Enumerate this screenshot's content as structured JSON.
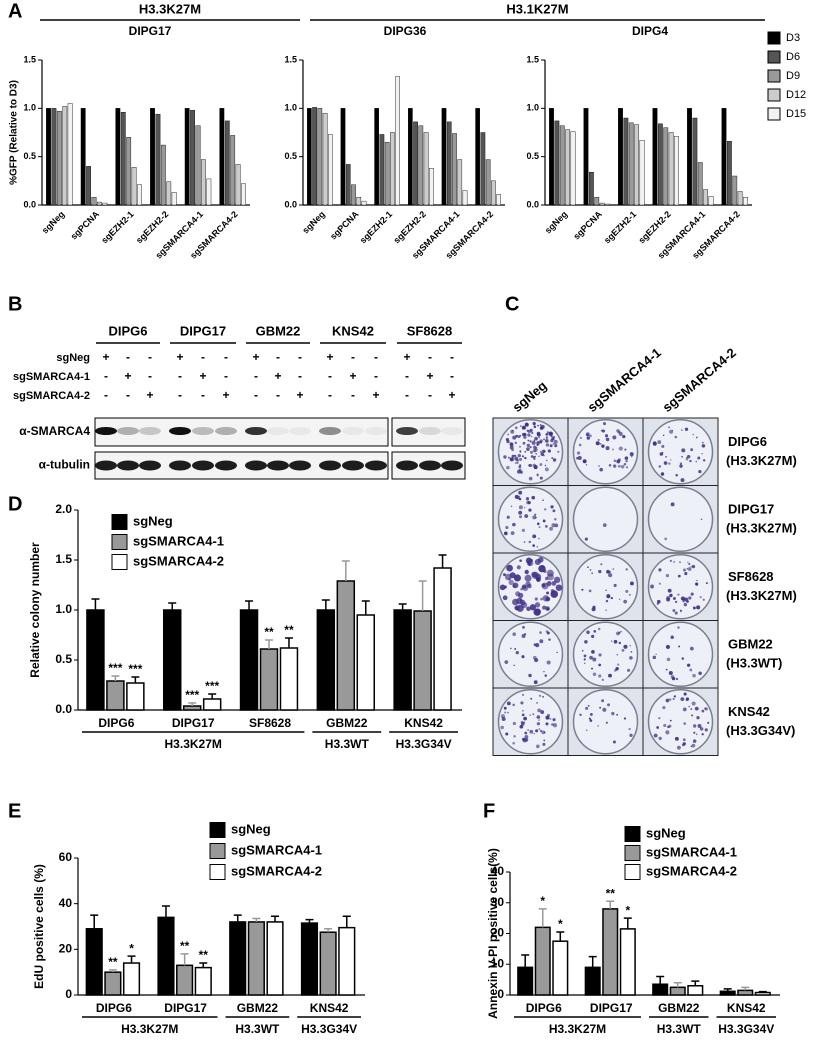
{
  "chart_data": [
    {
      "type": "bar",
      "title": "DIPG17",
      "ylabel": "%GFP (Relative to D3)",
      "legend": false,
      "categories": [
        "sgNeg",
        "sgPCNA",
        "sgEZH2-1",
        "sgEZH2-2",
        "sgSMARCA4-1",
        "sgSMARCA4-2"
      ],
      "ylim": [
        0,
        1.5
      ],
      "yticks": [
        {
          "value": 0,
          "label": "0.0"
        },
        0.5,
        {
          "value": 1,
          "label": "1.0"
        },
        1.5
      ],
      "series": [
        {
          "color": "#000000",
          "values": [
            1,
            1,
            1,
            1,
            1,
            1
          ]
        },
        {
          "color": "#555555",
          "values": [
            1.0,
            0.4,
            0.96,
            0.94,
            0.98,
            0.87
          ]
        },
        {
          "color": "#999999",
          "values": [
            0.97,
            0.08,
            0.7,
            0.62,
            0.82,
            0.72
          ]
        },
        {
          "color": "#cccccc",
          "values": [
            1.02,
            0.03,
            0.39,
            0.24,
            0.47,
            0.42
          ]
        },
        {
          "color": "#f2f2f2",
          "values": [
            1.05,
            0.02,
            0.21,
            0.13,
            0.27,
            0.22
          ]
        }
      ]
    },
    {
      "type": "bar",
      "title": "DIPG36",
      "legend": false,
      "categories": [
        "sgNeg",
        "sgPCNA",
        "sgEZH2-1",
        "sgEZH2-2",
        "sgSMARCA4-1",
        "sgSMARCA4-2"
      ],
      "ylim": [
        0,
        1.5
      ],
      "yticks": [
        {
          "value": 0,
          "label": "0.0"
        },
        0.5,
        {
          "value": 1,
          "label": "1.0"
        },
        1.5
      ],
      "series": [
        {
          "color": "#000000",
          "values": [
            1,
            1,
            1,
            1,
            1,
            1
          ]
        },
        {
          "color": "#555555",
          "values": [
            1.01,
            0.42,
            0.73,
            0.86,
            0.86,
            0.75
          ]
        },
        {
          "color": "#999999",
          "values": [
            1.0,
            0.21,
            0.65,
            0.82,
            0.74,
            0.47
          ]
        },
        {
          "color": "#cccccc",
          "values": [
            0.95,
            0.08,
            0.75,
            0.75,
            0.47,
            0.25
          ]
        },
        {
          "color": "#f2f2f2",
          "values": [
            0.73,
            0.04,
            1.33,
            0.38,
            0.15,
            0.11
          ]
        }
      ]
    },
    {
      "type": "bar",
      "title": "DIPG4",
      "legend": true,
      "categories": [
        "sgNeg",
        "sgPCNA",
        "sgEZH2-1",
        "sgEZH2-2",
        "sgSMARCA4-1",
        "sgSMARCA4-2"
      ],
      "ylim": [
        0,
        1.5
      ],
      "yticks": [
        {
          "value": 0,
          "label": "0.0"
        },
        0.5,
        {
          "value": 1,
          "label": "1.0"
        },
        1.5
      ],
      "series": [
        {
          "name": "D3",
          "color": "#000000",
          "values": [
            1,
            1,
            1,
            1,
            1,
            1
          ]
        },
        {
          "name": "D6",
          "color": "#555555",
          "values": [
            0.87,
            0.34,
            0.9,
            0.84,
            0.9,
            0.66
          ]
        },
        {
          "name": "D9",
          "color": "#999999",
          "values": [
            0.82,
            0.08,
            0.85,
            0.8,
            0.44,
            0.3
          ]
        },
        {
          "name": "D12",
          "color": "#cccccc",
          "values": [
            0.78,
            0.02,
            0.83,
            0.75,
            0.16,
            0.14
          ]
        },
        {
          "name": "D15",
          "color": "#f2f2f2",
          "values": [
            0.76,
            0.01,
            0.67,
            0.71,
            0.09,
            0.08
          ]
        }
      ]
    },
    {
      "type": "bar",
      "panel_label": "D",
      "ylabel": "Relative colony number",
      "legend": true,
      "categories": [
        "DIPG6",
        "DIPG17",
        "SF8628",
        "GBM22",
        "KNS42"
      ],
      "groups": [
        {
          "label": "H3.3K27M",
          "span": 3
        },
        {
          "label": "H3.3WT",
          "span": 1
        },
        {
          "label": "H3.3G34V",
          "span": 1
        }
      ],
      "ylim": [
        0,
        2
      ],
      "yticks": [
        {
          "value": 0,
          "label": "0.0"
        },
        0.5,
        {
          "value": 1,
          "label": "1.0"
        },
        1.5,
        {
          "value": 2,
          "label": "2.0"
        }
      ],
      "series": [
        {
          "name": "sgNeg",
          "color": "#000000",
          "values": [
            1,
            1,
            1,
            1,
            1
          ],
          "errors": [
            0.11,
            0.07,
            0.09,
            0.1,
            0.06
          ],
          "stars": [
            null,
            null,
            null,
            null,
            null
          ]
        },
        {
          "name": "sgSMARCA4-1",
          "color": "#999999",
          "values": [
            0.29,
            0.04,
            0.61,
            1.29,
            0.99
          ],
          "errors": [
            0.05,
            0.03,
            0.09,
            0.2,
            0.3
          ],
          "stars": [
            "***",
            "***",
            "**",
            null,
            null
          ]
        },
        {
          "name": "sgSMARCA4-2",
          "color": "#ffffff",
          "values": [
            0.27,
            0.11,
            0.62,
            0.95,
            1.42
          ],
          "errors": [
            0.06,
            0.05,
            0.1,
            0.14,
            0.13
          ],
          "stars": [
            "***",
            "***",
            "**",
            null,
            null
          ]
        }
      ]
    },
    {
      "type": "bar",
      "panel_label": "E",
      "ylabel": "EdU positive cells (%)",
      "legend": true,
      "categories": [
        "DIPG6",
        "DIPG17",
        "GBM22",
        "KNS42"
      ],
      "groups": [
        {
          "label": "H3.3K27M",
          "span": 2
        },
        {
          "label": "H3.3WT",
          "span": 1
        },
        {
          "label": "H3.3G34V",
          "span": 1
        }
      ],
      "ylim": [
        0,
        60
      ],
      "yticks": [
        0,
        20,
        40,
        60
      ],
      "series": [
        {
          "name": "sgNeg",
          "color": "#000000",
          "values": [
            29,
            34,
            32,
            31.5
          ],
          "errors": [
            6,
            5,
            3,
            1.5
          ],
          "stars": [
            null,
            null,
            null,
            null
          ]
        },
        {
          "name": "sgSMARCA4-1",
          "color": "#999999",
          "values": [
            10,
            13,
            32,
            27.5
          ],
          "errors": [
            1,
            5,
            1.5,
            1.5
          ],
          "stars": [
            "**",
            "**",
            null,
            null
          ]
        },
        {
          "name": "sgSMARCA4-2",
          "color": "#ffffff",
          "values": [
            14,
            12,
            32,
            29.5
          ],
          "errors": [
            3,
            2,
            2.5,
            5
          ],
          "stars": [
            "*",
            "**",
            null,
            null
          ]
        }
      ]
    },
    {
      "type": "bar",
      "panel_label": "F",
      "ylabel": "Annexin V-PI positive cells(%)",
      "legend": true,
      "categories": [
        "DIPG6",
        "DIPG17",
        "GBM22",
        "KNS42"
      ],
      "groups": [
        {
          "label": "H3.3K27M",
          "span": 2
        },
        {
          "label": "H3.3WT",
          "span": 1
        },
        {
          "label": "H3.3G34V",
          "span": 1
        }
      ],
      "ylim": [
        0,
        40
      ],
      "yticks": [
        0,
        10,
        20,
        30,
        40
      ],
      "series": [
        {
          "name": "sgNeg",
          "color": "#000000",
          "values": [
            9,
            9,
            3.5,
            1.2
          ],
          "errors": [
            4,
            3.5,
            2.5,
            0.8
          ],
          "stars": [
            null,
            null,
            null,
            null
          ]
        },
        {
          "name": "sgSMARCA4-1",
          "color": "#999999",
          "values": [
            22,
            28,
            2.5,
            1.5
          ],
          "errors": [
            6,
            2.5,
            1.5,
            1
          ],
          "stars": [
            "*",
            "**",
            null,
            null
          ]
        },
        {
          "name": "sgSMARCA4-2",
          "color": "#ffffff",
          "values": [
            17.5,
            21.5,
            3,
            0.8
          ],
          "errors": [
            3,
            3.5,
            1.5,
            0.3
          ],
          "stars": [
            "*",
            "*",
            null,
            null
          ]
        }
      ]
    }
  ],
  "panel_a": {
    "label": "A",
    "groups": [
      "H3.3K27M",
      "H3.1K27M"
    ]
  },
  "panel_b": {
    "label": "B",
    "cell_lines": [
      "DIPG6",
      "DIPG17",
      "GBM22",
      "KNS42",
      "SF8628"
    ],
    "rows": [
      {
        "name": "sgNeg",
        "lanes": [
          "+",
          "-",
          "-",
          "+",
          "-",
          "-",
          "+",
          "-",
          "-",
          "+",
          "-",
          "-",
          "+",
          "-",
          "-"
        ]
      },
      {
        "name": "sgSMARCA4-1",
        "lanes": [
          "-",
          "+",
          "-",
          "-",
          "+",
          "-",
          "-",
          "+",
          "-",
          "-",
          "+",
          "-",
          "-",
          "+",
          "-"
        ]
      },
      {
        "name": "sgSMARCA4-2",
        "lanes": [
          "-",
          "-",
          "+",
          "-",
          "-",
          "+",
          "-",
          "-",
          "+",
          "-",
          "-",
          "+",
          "-",
          "-",
          "+"
        ]
      }
    ],
    "antibodies": [
      "α-SMARCA4",
      "α-tubulin"
    ]
  },
  "panel_c": {
    "label": "C",
    "columns": [
      "sgNeg",
      "sgSMARCA4-1",
      "sgSMARCA4-2"
    ],
    "rows": [
      {
        "line": "DIPG6",
        "histone": "(H3.3K27M)"
      },
      {
        "line": "DIPG17",
        "histone": "(H3.3K27M)"
      },
      {
        "line": "SF8628",
        "histone": "(H3.3K27M)"
      },
      {
        "line": "GBM22",
        "histone": "(H3.3WT)"
      },
      {
        "line": "KNS42",
        "histone": "(H3.3G34V)"
      }
    ]
  }
}
